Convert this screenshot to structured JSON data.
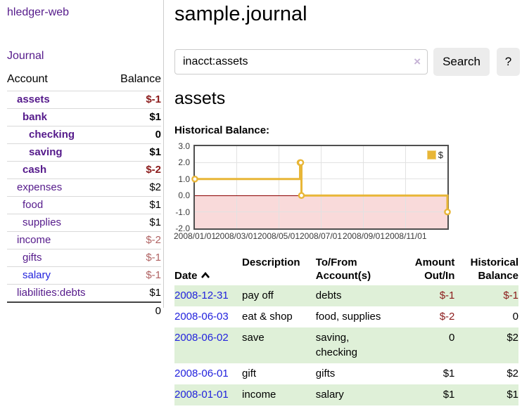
{
  "colors": {
    "purple": "#551a8b",
    "blue": "#2222dd",
    "negStrong": "#8b1a1a",
    "negSoft": "#b06262",
    "rowGreen": "#dff0d8",
    "gold": "#e8b637",
    "goldEdge": "#f0d487"
  },
  "app": {
    "title": "hledger-web"
  },
  "sidebar": {
    "journal_label": "Journal",
    "accounts_header": {
      "account": "Account",
      "balance": "Balance"
    },
    "accounts": [
      {
        "name": "assets",
        "balance": "$-1"
      },
      {
        "name": "bank",
        "balance": "$1"
      },
      {
        "name": "checking",
        "balance": "0"
      },
      {
        "name": "saving",
        "balance": "$1"
      },
      {
        "name": "cash",
        "balance": "$-2"
      },
      {
        "name": "expenses",
        "balance": "$2"
      },
      {
        "name": "food",
        "balance": "$1"
      },
      {
        "name": "supplies",
        "balance": "$1"
      },
      {
        "name": "income",
        "balance": "$-2"
      },
      {
        "name": "gifts",
        "balance": "$-1"
      },
      {
        "name": "salary",
        "balance": "$-1"
      },
      {
        "name": "liabilities:debts",
        "balance": "$1"
      }
    ],
    "total": "0"
  },
  "main": {
    "title": "sample.journal",
    "search": {
      "value": "inacct:assets",
      "clear_icon": "×",
      "search_label": "Search",
      "help_label": "?"
    },
    "account_heading": "assets",
    "chart_label": "Historical Balance:"
  },
  "chart_data": {
    "type": "line",
    "step": true,
    "title": "Historical Balance:",
    "x": [
      "2008-01-01",
      "2008-06-01",
      "2008-06-02",
      "2008-06-03",
      "2008-12-31"
    ],
    "series": [
      {
        "name": "$",
        "values": [
          1,
          2,
          2,
          0,
          -1
        ]
      }
    ],
    "xrange": [
      "2008-01-01",
      "2008-12-31"
    ],
    "ylim": [
      -2,
      3
    ],
    "yticks": [
      -2,
      -1,
      0,
      1,
      2,
      3
    ],
    "xticks": [
      {
        "date": "2008-01-01",
        "label": "2008/01/01"
      },
      {
        "date": "2008-03-01",
        "label": "2008/03/01"
      },
      {
        "date": "2008-05-01",
        "label": "2008/05/01"
      },
      {
        "date": "2008-07-01",
        "label": "2008/07/01"
      },
      {
        "date": "2008-09-01",
        "label": "2008/09/01"
      },
      {
        "date": "2008-11-01",
        "label": "2008/11/01"
      }
    ],
    "legend_position": "top-right",
    "grid": true,
    "negative_region_shaded": true
  },
  "register": {
    "headers": {
      "date": "Date",
      "description": "Description",
      "accounts": "To/From\nAccount(s)",
      "amount": "Amount\nOut/In",
      "balance": "Historical\nBalance"
    },
    "rows": [
      {
        "date": "2008-12-31",
        "description": "pay off",
        "accounts": "debts",
        "amount": "$-1",
        "balance": "$-1"
      },
      {
        "date": "2008-06-03",
        "description": "eat & shop",
        "accounts": "food, supplies",
        "amount": "$-2",
        "balance": "0"
      },
      {
        "date": "2008-06-02",
        "description": "save",
        "accounts": "saving,\nchecking",
        "amount": "0",
        "balance": "$2"
      },
      {
        "date": "2008-06-01",
        "description": "gift",
        "accounts": "gifts",
        "amount": "$1",
        "balance": "$2"
      },
      {
        "date": "2008-01-01",
        "description": "income",
        "accounts": "salary",
        "amount": "$1",
        "balance": "$1"
      }
    ]
  }
}
